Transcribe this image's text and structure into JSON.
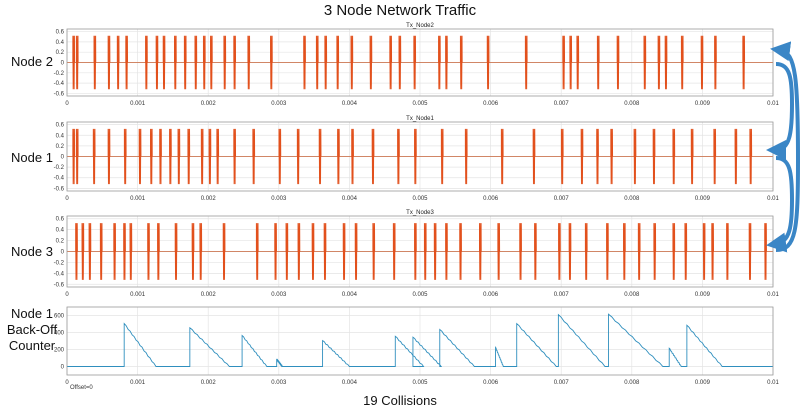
{
  "figure": {
    "title": "3 Node Network Traffic",
    "caption": "19 Collisions",
    "offset_note": "Offset=0",
    "colors": {
      "tx_signal": "#e2501c",
      "tx_baseline": "#c8643a",
      "counter_line": "#2f8fbe",
      "arrow": "#3a86c6",
      "axes_frame": "#9a9a9a",
      "grid": "#e4e4e4"
    }
  },
  "chart_data": [
    {
      "type": "line",
      "row_label": "Node 2",
      "title": "Tx_Node2",
      "xlim": [
        0,
        0.01
      ],
      "ylim": [
        -0.65,
        0.65
      ],
      "xticks": [
        "0",
        "0.001",
        "0.002",
        "0.003",
        "0.004",
        "0.005",
        "0.006",
        "0.007",
        "0.008",
        "0.009",
        "0.01"
      ],
      "yticks": [
        "0.6",
        "0.4",
        "0.2",
        "0",
        "-0.2",
        "-0.4",
        "-0.6"
      ],
      "ytick_values": [
        0.6,
        0.4,
        0.2,
        0,
        -0.2,
        -0.4,
        -0.6
      ],
      "grid": true,
      "amplitude": 0.52,
      "bursts": [
        [
          8e-05,
          0.00011
        ],
        [
          0.00013,
          0.00016
        ],
        [
          0.00038,
          0.00041
        ],
        [
          0.00058,
          0.00061
        ],
        [
          0.00071,
          0.00074
        ],
        [
          0.00083,
          0.00086
        ],
        [
          0.00111,
          0.00114
        ],
        [
          0.00126,
          0.00129
        ],
        [
          0.00136,
          0.00139
        ],
        [
          0.00152,
          0.00155
        ],
        [
          0.00166,
          0.00169
        ],
        [
          0.00181,
          0.00184
        ],
        [
          0.00193,
          0.00196
        ],
        [
          0.00203,
          0.00206
        ],
        [
          0.00222,
          0.00225
        ],
        [
          0.00236,
          0.00239
        ],
        [
          0.00256,
          0.00259
        ],
        [
          0.00288,
          0.00291
        ],
        [
          0.00335,
          0.00338
        ],
        [
          0.00353,
          0.00356
        ],
        [
          0.00365,
          0.00368
        ],
        [
          0.00382,
          0.00385
        ],
        [
          0.00402,
          0.00405
        ],
        [
          0.00429,
          0.00432
        ],
        [
          0.00457,
          0.0046
        ],
        [
          0.0047,
          0.00473
        ],
        [
          0.00491,
          0.00494
        ],
        [
          0.00526,
          0.00529
        ],
        [
          0.00536,
          0.00539
        ],
        [
          0.00557,
          0.0056
        ],
        [
          0.00595,
          0.00598
        ],
        [
          0.00649,
          0.00652
        ],
        [
          0.00702,
          0.00705
        ],
        [
          0.00712,
          0.00715
        ],
        [
          0.00722,
          0.00725
        ],
        [
          0.00751,
          0.00754
        ],
        [
          0.00779,
          0.00782
        ],
        [
          0.00817,
          0.0082
        ],
        [
          0.00837,
          0.0084
        ],
        [
          0.00847,
          0.0085
        ],
        [
          0.0087,
          0.00873
        ],
        [
          0.00898,
          0.00901
        ],
        [
          0.00917,
          0.0092
        ],
        [
          0.00957,
          0.0096
        ]
      ]
    },
    {
      "type": "line",
      "row_label": "Node 1",
      "title": "Tx_Node1",
      "xlim": [
        0,
        0.01
      ],
      "ylim": [
        -0.65,
        0.65
      ],
      "xticks": [
        "0",
        "0.001",
        "0.002",
        "0.003",
        "0.004",
        "0.005",
        "0.006",
        "0.007",
        "0.008",
        "0.009",
        "0.01"
      ],
      "yticks": [
        "0.6",
        "0.4",
        "0.2",
        "0",
        "-0.2",
        "-0.4",
        "-0.6"
      ],
      "ytick_values": [
        0.6,
        0.4,
        0.2,
        0,
        -0.2,
        -0.4,
        -0.6
      ],
      "grid": true,
      "amplitude": 0.52,
      "bursts": [
        [
          8e-05,
          0.00011
        ],
        [
          0.00013,
          0.00016
        ],
        [
          0.00037,
          0.0004
        ],
        [
          0.00058,
          0.00061
        ],
        [
          0.00081,
          0.00084
        ],
        [
          0.00102,
          0.00105
        ],
        [
          0.00118,
          0.00121
        ],
        [
          0.00131,
          0.00134
        ],
        [
          0.00145,
          0.00148
        ],
        [
          0.00157,
          0.0016
        ],
        [
          0.00171,
          0.00174
        ],
        [
          0.0019,
          0.00193
        ],
        [
          0.00201,
          0.00204
        ],
        [
          0.00212,
          0.00215
        ],
        [
          0.00236,
          0.00239
        ],
        [
          0.00263,
          0.00266
        ],
        [
          0.003,
          0.00303
        ],
        [
          0.00326,
          0.00329
        ],
        [
          0.00357,
          0.0036
        ],
        [
          0.00383,
          0.00386
        ],
        [
          0.00403,
          0.00406
        ],
        [
          0.00432,
          0.00435
        ],
        [
          0.00468,
          0.00471
        ],
        [
          0.00492,
          0.00495
        ],
        [
          0.0053,
          0.00533
        ],
        [
          0.00564,
          0.00567
        ],
        [
          0.00615,
          0.00618
        ],
        [
          0.0066,
          0.00663
        ],
        [
          0.007,
          0.00703
        ],
        [
          0.00728,
          0.00731
        ],
        [
          0.0075,
          0.00753
        ],
        [
          0.0077,
          0.00773
        ],
        [
          0.00803,
          0.00806
        ],
        [
          0.0083,
          0.00833
        ],
        [
          0.00858,
          0.00861
        ],
        [
          0.00884,
          0.00887
        ],
        [
          0.00916,
          0.00919
        ],
        [
          0.00946,
          0.00949
        ],
        [
          0.00967,
          0.0097
        ]
      ]
    },
    {
      "type": "line",
      "row_label": "Node 3",
      "title": "Tx_Node3",
      "xlim": [
        0,
        0.01
      ],
      "ylim": [
        -0.65,
        0.65
      ],
      "xticks": [
        "0",
        "0.001",
        "0.002",
        "0.003",
        "0.004",
        "0.005",
        "0.006",
        "0.007",
        "0.008",
        "0.009",
        "0.01"
      ],
      "yticks": [
        "0.6",
        "0.4",
        "0.2",
        "0",
        "-0.2",
        "-0.4",
        "-0.6"
      ],
      "ytick_values": [
        0.6,
        0.4,
        0.2,
        0,
        -0.2,
        -0.4,
        -0.6
      ],
      "grid": true,
      "amplitude": 0.52,
      "bursts": [
        [
          0.00012,
          0.00015
        ],
        [
          0.00021,
          0.00024
        ],
        [
          0.00031,
          0.00034
        ],
        [
          0.00047,
          0.0005
        ],
        [
          0.00066,
          0.00069
        ],
        [
          0.0008,
          0.00083
        ],
        [
          0.00089,
          0.00092
        ],
        [
          0.00114,
          0.00117
        ],
        [
          0.00128,
          0.00131
        ],
        [
          0.00153,
          0.00156
        ],
        [
          0.00177,
          0.0018
        ],
        [
          0.00188,
          0.00191
        ],
        [
          0.00221,
          0.00224
        ],
        [
          0.00268,
          0.00271
        ],
        [
          0.00294,
          0.00297
        ],
        [
          0.0031,
          0.00313
        ],
        [
          0.00327,
          0.0033
        ],
        [
          0.00347,
          0.0035
        ],
        [
          0.00364,
          0.00367
        ],
        [
          0.00391,
          0.00394
        ],
        [
          0.00408,
          0.00411
        ],
        [
          0.00433,
          0.00436
        ],
        [
          0.00462,
          0.00465
        ],
        [
          0.00492,
          0.00495
        ],
        [
          0.00506,
          0.00509
        ],
        [
          0.0052,
          0.00523
        ],
        [
          0.00536,
          0.00539
        ],
        [
          0.00556,
          0.00559
        ],
        [
          0.00584,
          0.00587
        ],
        [
          0.0061,
          0.00613
        ],
        [
          0.00641,
          0.00644
        ],
        [
          0.00662,
          0.00665
        ],
        [
          0.00696,
          0.00699
        ],
        [
          0.00711,
          0.00714
        ],
        [
          0.00734,
          0.00737
        ],
        [
          0.00764,
          0.00767
        ],
        [
          0.00788,
          0.00791
        ],
        [
          0.00809,
          0.00812
        ],
        [
          0.00831,
          0.00834
        ],
        [
          0.00858,
          0.00861
        ],
        [
          0.00875,
          0.00878
        ],
        [
          0.00901,
          0.00904
        ],
        [
          0.00913,
          0.00916
        ],
        [
          0.00934,
          0.00937
        ],
        [
          0.00966,
          0.00969
        ],
        [
          0.00988,
          0.00991
        ]
      ]
    },
    {
      "type": "line",
      "row_label": "Node 1\nBack-Off\nCounter",
      "xlim": [
        0,
        0.01
      ],
      "ylim": [
        -100,
        700
      ],
      "xticks": [
        "0",
        "0.001",
        "0.002",
        "0.003",
        "0.004",
        "0.005",
        "0.006",
        "0.007",
        "0.008",
        "0.009",
        "0.01"
      ],
      "yticks": [
        "600",
        "400",
        "200",
        "0"
      ],
      "ytick_values": [
        600,
        400,
        200,
        0
      ],
      "grid": true,
      "segments": [
        {
          "jump_x": 0.00081,
          "peak": 505,
          "end_x": 0.00126
        },
        {
          "jump_x": 0.00174,
          "peak": 455,
          "end_x": 0.0023
        },
        {
          "jump_x": 0.00248,
          "peak": 365,
          "end_x": 0.00283
        },
        {
          "jump_x": 0.00297,
          "peak": 85,
          "end_x": 0.00305
        },
        {
          "jump_x": 0.00362,
          "peak": 305,
          "end_x": 0.004
        },
        {
          "jump_x": 0.00465,
          "peak": 355,
          "end_x": 0.00505
        },
        {
          "jump_x": 0.0049,
          "peak": 345,
          "end_x": 0.0053
        },
        {
          "jump_x": 0.00528,
          "peak": 435,
          "end_x": 0.00577
        },
        {
          "jump_x": 0.00607,
          "peak": 225,
          "end_x": 0.00618
        },
        {
          "jump_x": 0.00637,
          "peak": 505,
          "end_x": 0.00693
        },
        {
          "jump_x": 0.00696,
          "peak": 610,
          "end_x": 0.00762
        },
        {
          "jump_x": 0.00767,
          "peak": 615,
          "end_x": 0.00844
        },
        {
          "jump_x": 0.00853,
          "peak": 215,
          "end_x": 0.0087
        },
        {
          "jump_x": 0.00878,
          "peak": 485,
          "end_x": 0.00928
        }
      ]
    }
  ]
}
